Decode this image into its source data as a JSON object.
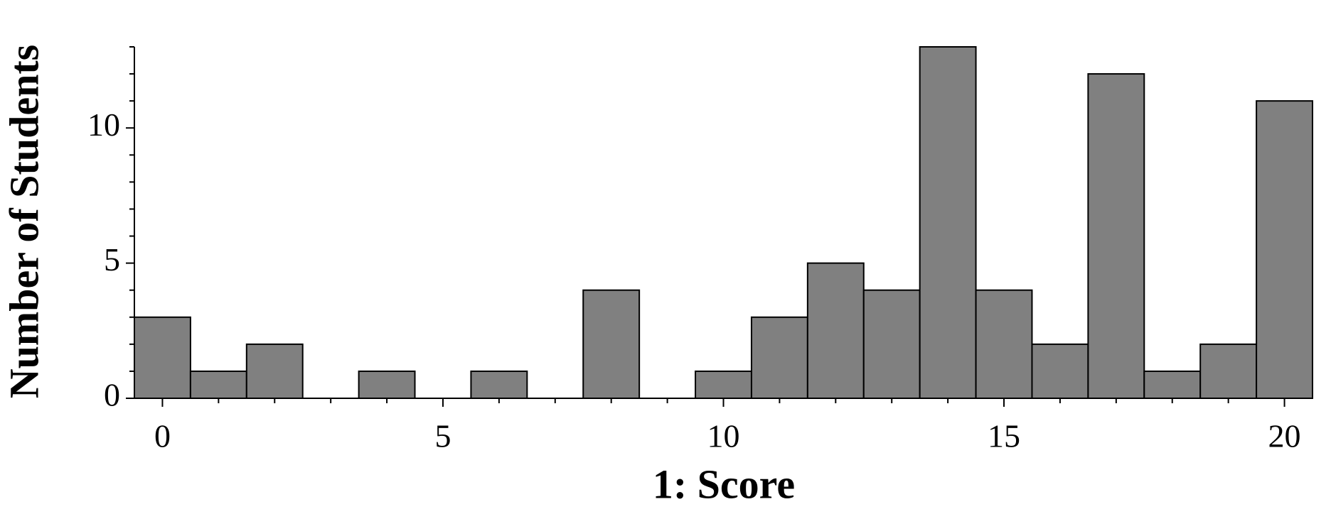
{
  "chart_data": {
    "type": "histogram",
    "x_label": "1: Score",
    "y_label": "Number of Students",
    "bins": [
      -0.5,
      0.5,
      1.5,
      2.5,
      3.5,
      4.5,
      5.5,
      6.5,
      7.5,
      8.5,
      9.5,
      10.5,
      11.5,
      12.5,
      13.5,
      14.5,
      15.5,
      16.5,
      17.5,
      18.5,
      19.5,
      20.5
    ],
    "values": [
      3,
      1,
      2,
      0,
      1,
      0,
      1,
      0,
      4,
      0,
      1,
      3,
      5,
      4,
      13,
      4,
      2,
      12,
      1,
      2,
      11
    ],
    "color": "#808080",
    "xlim": [
      -0.5,
      20.5
    ],
    "ylim": [
      0,
      13
    ],
    "xticks": [
      0,
      5,
      10,
      15,
      20
    ],
    "yticks": [
      0,
      5,
      10
    ],
    "x_minor_ticks": [
      1,
      2,
      3,
      4,
      6,
      7,
      8,
      9,
      11,
      12,
      13,
      14,
      16,
      17,
      18,
      19
    ],
    "y_minor_ticks": [
      1,
      2,
      3,
      4,
      6,
      7,
      8,
      9,
      11,
      12,
      13
    ]
  }
}
